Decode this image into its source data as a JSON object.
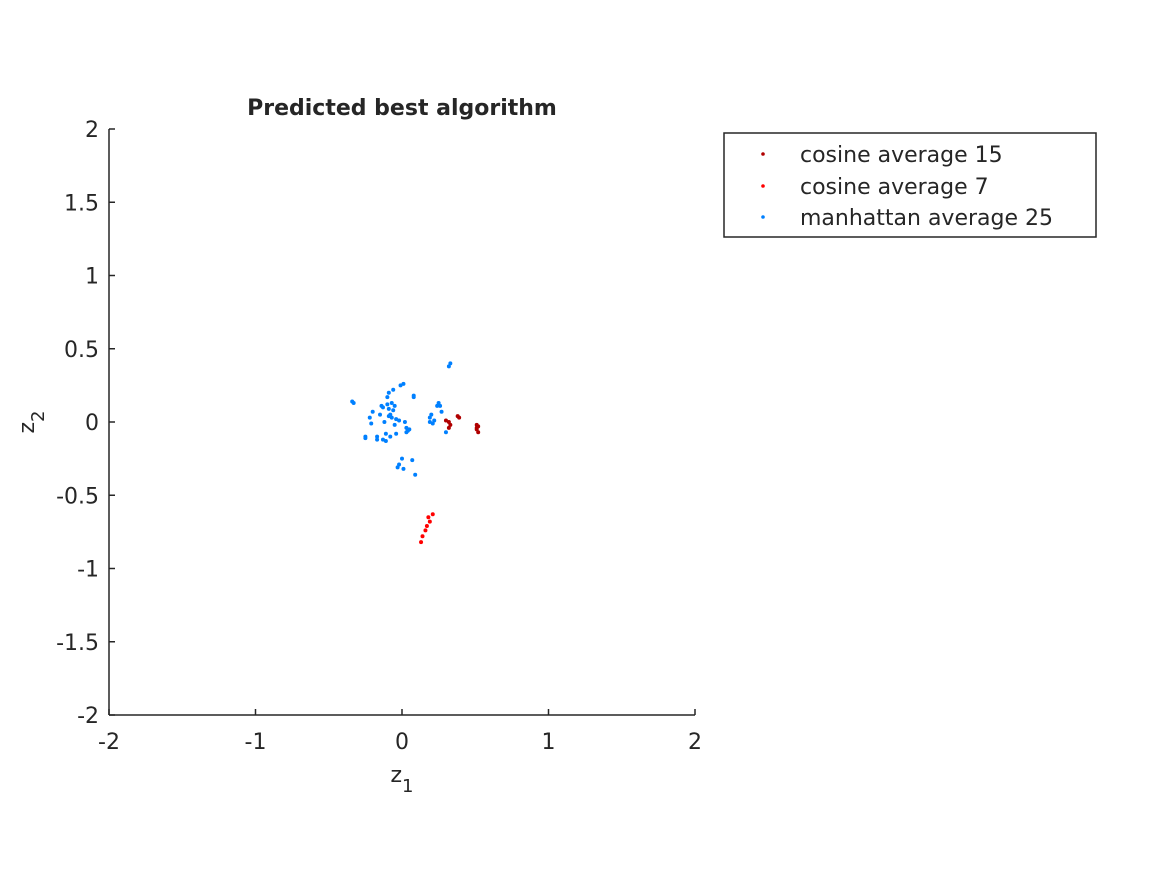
{
  "chart_data": {
    "type": "scatter",
    "title": "Predicted best algorithm",
    "xlabel": {
      "base": "z",
      "sub": "1"
    },
    "ylabel": {
      "base": "z",
      "sub": "2"
    },
    "xlim": [
      -2,
      2
    ],
    "ylim": [
      -2,
      2
    ],
    "xticks": [
      -2,
      -1,
      0,
      1,
      2
    ],
    "yticks": [
      -2,
      -1.5,
      -1,
      -0.5,
      0,
      0.5,
      1,
      1.5,
      2
    ],
    "grid": false,
    "legend_position": "outside-top-right",
    "series": [
      {
        "name": "cosine average 15",
        "color": "#b00000",
        "points": [
          [
            0.32,
            0.0
          ],
          [
            0.33,
            -0.02
          ],
          [
            0.3,
            0.01
          ],
          [
            0.32,
            -0.04
          ],
          [
            0.38,
            0.04
          ],
          [
            0.39,
            0.03
          ],
          [
            0.51,
            -0.02
          ],
          [
            0.51,
            -0.05
          ],
          [
            0.52,
            -0.03
          ],
          [
            0.52,
            -0.07
          ],
          [
            0.51,
            -0.04
          ]
        ]
      },
      {
        "name": "cosine average 7",
        "color": "#ff0000",
        "points": [
          [
            0.21,
            -0.63
          ],
          [
            0.18,
            -0.65
          ],
          [
            0.19,
            -0.68
          ],
          [
            0.17,
            -0.71
          ],
          [
            0.16,
            -0.74
          ],
          [
            0.14,
            -0.78
          ],
          [
            0.13,
            -0.82
          ]
        ]
      },
      {
        "name": "manhattan average 25",
        "color": "#0080ff",
        "points": [
          [
            -0.34,
            0.14
          ],
          [
            -0.33,
            0.13
          ],
          [
            -0.25,
            -0.11
          ],
          [
            -0.25,
            -0.1
          ],
          [
            -0.22,
            0.03
          ],
          [
            -0.2,
            0.07
          ],
          [
            -0.21,
            -0.01
          ],
          [
            -0.17,
            -0.1
          ],
          [
            -0.17,
            -0.12
          ],
          [
            -0.15,
            0.05
          ],
          [
            -0.14,
            0.11
          ],
          [
            -0.13,
            0.1
          ],
          [
            -0.13,
            -0.12
          ],
          [
            -0.11,
            -0.08
          ],
          [
            -0.12,
            0.0
          ],
          [
            -0.11,
            -0.13
          ],
          [
            -0.1,
            0.17
          ],
          [
            -0.1,
            0.12
          ],
          [
            -0.09,
            0.04
          ],
          [
            -0.09,
            0.2
          ],
          [
            -0.09,
            0.09
          ],
          [
            -0.08,
            0.05
          ],
          [
            -0.08,
            -0.1
          ],
          [
            -0.07,
            0.13
          ],
          [
            -0.07,
            0.03
          ],
          [
            -0.06,
            0.22
          ],
          [
            -0.06,
            0.08
          ],
          [
            -0.05,
            0.11
          ],
          [
            -0.05,
            -0.02
          ],
          [
            -0.04,
            0.02
          ],
          [
            -0.04,
            -0.08
          ],
          [
            -0.03,
            -0.31
          ],
          [
            -0.02,
            -0.29
          ],
          [
            -0.02,
            0.01
          ],
          [
            -0.01,
            0.25
          ],
          [
            0.0,
            -0.25
          ],
          [
            0.01,
            -0.32
          ],
          [
            0.01,
            0.26
          ],
          [
            0.02,
            0.0
          ],
          [
            0.03,
            -0.04
          ],
          [
            0.03,
            -0.07
          ],
          [
            0.04,
            -0.06
          ],
          [
            0.05,
            -0.05
          ],
          [
            0.07,
            -0.26
          ],
          [
            0.08,
            0.18
          ],
          [
            0.08,
            0.17
          ],
          [
            0.09,
            -0.36
          ],
          [
            0.19,
            0.0
          ],
          [
            0.19,
            0.03
          ],
          [
            0.2,
            0.05
          ],
          [
            0.21,
            -0.01
          ],
          [
            0.22,
            0.01
          ],
          [
            0.24,
            0.11
          ],
          [
            0.25,
            0.13
          ],
          [
            0.26,
            0.11
          ],
          [
            0.27,
            0.07
          ],
          [
            0.3,
            -0.07
          ],
          [
            0.32,
            0.38
          ],
          [
            0.33,
            0.4
          ]
        ]
      }
    ]
  }
}
